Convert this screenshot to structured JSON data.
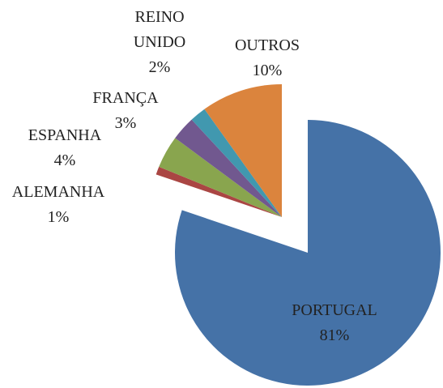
{
  "chart_data": {
    "type": "pie",
    "categories": [
      "PORTUGAL",
      "ALEMANHA",
      "ESPANHA",
      "FRANÇA",
      "REINO UNIDO",
      "OUTROS"
    ],
    "values": [
      81,
      1,
      4,
      3,
      2,
      10
    ],
    "value_labels": [
      "81%",
      "1%",
      "4%",
      "3%",
      "2%",
      "10%"
    ],
    "colors": [
      "#4572a7",
      "#aa4643",
      "#89a54e",
      "#71588f",
      "#4198af",
      "#db843d"
    ]
  }
}
